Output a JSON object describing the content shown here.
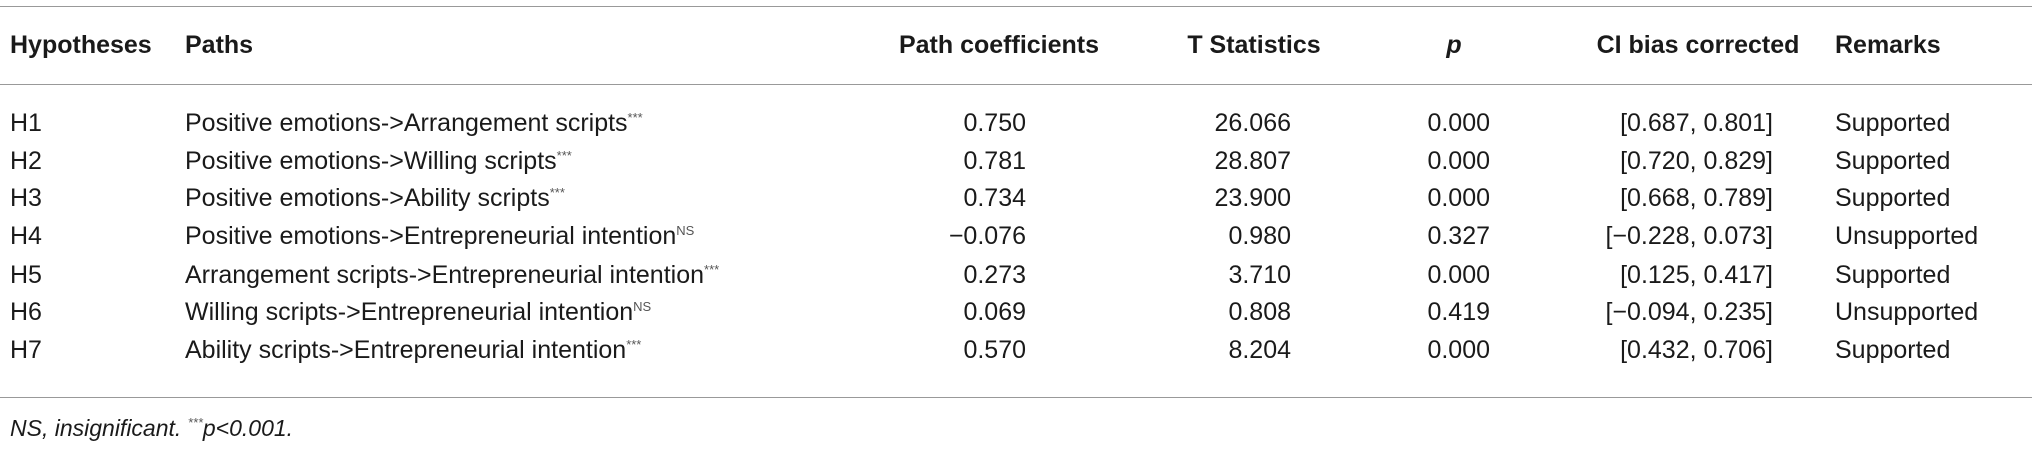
{
  "table": {
    "header": [
      "Hypotheses",
      "Paths",
      "Path coefficients",
      "T Statistics",
      "p",
      "CI bias corrected",
      "Remarks"
    ],
    "rows": [
      [
        "H1",
        {
          "text": "Positive emotions->Arrangement scripts",
          "sup": "***"
        },
        "0.750",
        "26.066",
        "0.000",
        "[0.687, 0.801]",
        "Supported"
      ],
      [
        "H2",
        {
          "text": "Positive emotions->Willing scripts",
          "sup": "***"
        },
        "0.781",
        "28.807",
        "0.000",
        "[0.720, 0.829]",
        "Supported"
      ],
      [
        "H3",
        {
          "text": "Positive emotions->Ability scripts",
          "sup": "***"
        },
        "0.734",
        "23.900",
        "0.000",
        "[0.668, 0.789]",
        "Supported"
      ],
      [
        "H4",
        {
          "text": "Positive emotions->Entrepreneurial intention",
          "sup": "NS"
        },
        "−0.076",
        "0.980",
        "0.327",
        "[−0.228, 0.073]",
        "Unsupported"
      ],
      [
        "H5",
        {
          "text": "Arrangement scripts->Entrepreneurial intention",
          "sup": "***"
        },
        "0.273",
        "3.710",
        "0.000",
        "[0.125, 0.417]",
        "Supported"
      ],
      [
        "H6",
        {
          "text": "Willing scripts->Entrepreneurial intention",
          "sup": "NS"
        },
        "0.069",
        "0.808",
        "0.419",
        "[−0.094, 0.235]",
        "Unsupported"
      ],
      [
        "H7",
        {
          "text": "Ability scripts->Entrepreneurial intention",
          "sup": "***"
        },
        "0.570",
        "8.204",
        "0.000",
        "[0.432, 0.706]",
        "Supported"
      ]
    ]
  },
  "footnote": {
    "text1": "NS, insignificant. ",
    "sup": "***",
    "text2": "p<0.001."
  }
}
